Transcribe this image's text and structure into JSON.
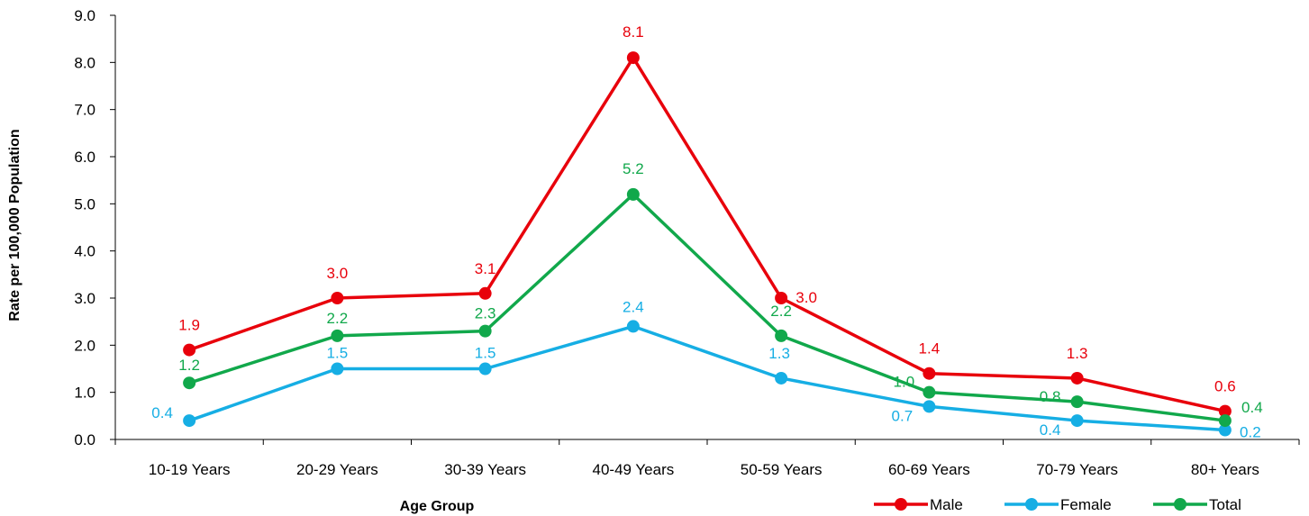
{
  "chart_data": {
    "type": "line",
    "title": "",
    "xlabel": "Age Group",
    "ylabel": "Rate per 100,000 Population",
    "ylim": [
      0,
      9
    ],
    "y_ticks": [
      "0.0",
      "1.0",
      "2.0",
      "3.0",
      "4.0",
      "5.0",
      "6.0",
      "7.0",
      "8.0",
      "9.0"
    ],
    "grid": false,
    "legend_position": "bottom-right",
    "categories": [
      "10-19 Years",
      "20-29 Years",
      "30-39 Years",
      "40-49 Years",
      "50-59 Years",
      "60-69 Years",
      "70-79 Years",
      "80+ Years"
    ],
    "series": [
      {
        "name": "Male",
        "color": "#e8000b",
        "values": [
          1.9,
          3.0,
          3.1,
          8.1,
          3.0,
          1.4,
          1.3,
          0.6
        ],
        "labels": [
          "1.9",
          "3.0",
          "3.1",
          "8.1",
          "3.0",
          "1.4",
          "1.3",
          "0.6"
        ]
      },
      {
        "name": "Female",
        "color": "#16aee4",
        "values": [
          0.4,
          1.5,
          1.5,
          2.4,
          1.3,
          0.7,
          0.4,
          0.2
        ],
        "labels": [
          "0.4",
          "1.5",
          "1.5",
          "2.4",
          "1.3",
          "0.7",
          "0.4",
          "0.2"
        ]
      },
      {
        "name": "Total",
        "color": "#11a84b",
        "values": [
          1.2,
          2.2,
          2.3,
          5.2,
          2.2,
          1.0,
          0.8,
          0.4
        ],
        "labels": [
          "1.2",
          "2.2",
          "2.3",
          "5.2",
          "2.2",
          "1.0",
          "0.8",
          "0.4"
        ]
      }
    ]
  }
}
